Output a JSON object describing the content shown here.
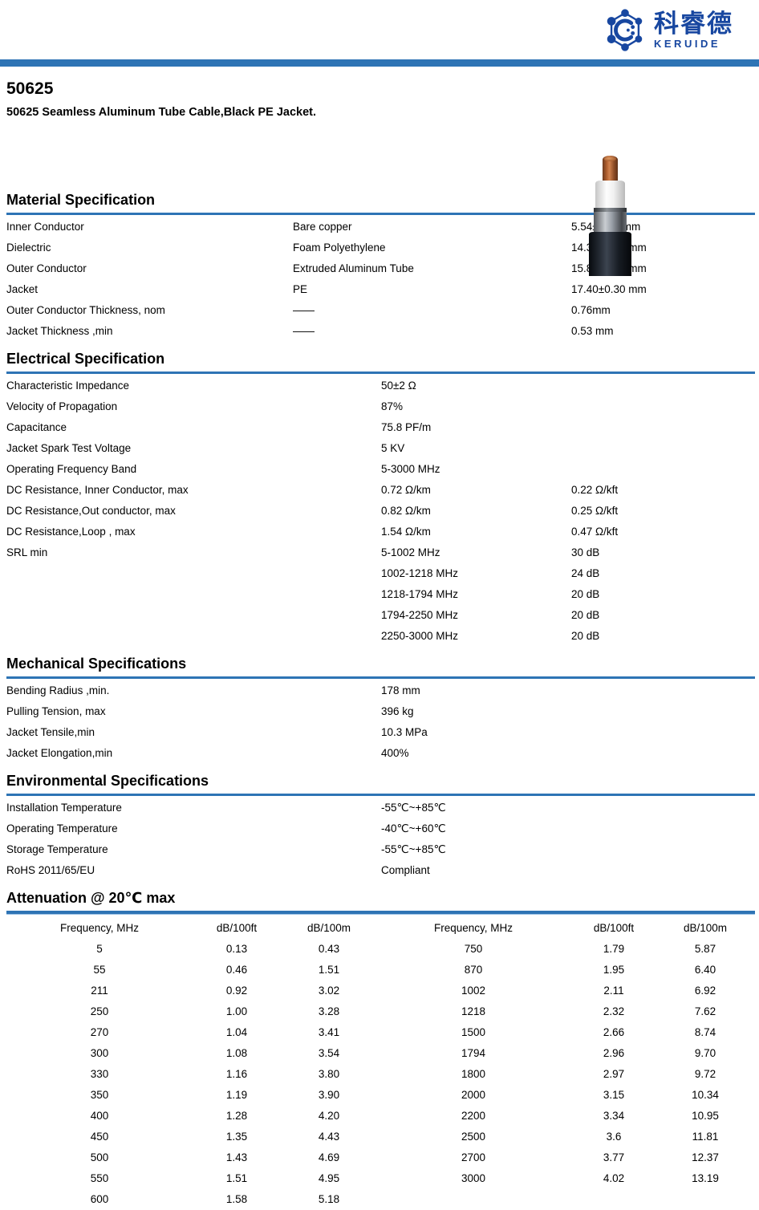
{
  "colors": {
    "accent_blue": "#2e74b5",
    "logo_blue": "#1847a0",
    "text": "#000000"
  },
  "header": {
    "logo_cn": "科睿德",
    "logo_en": "KERUIDE"
  },
  "product": {
    "model": "50625",
    "subtitle": "50625 Seamless Aluminum Tube Cable,Black PE Jacket."
  },
  "sections": {
    "material": {
      "heading": "Material Specification",
      "rows": [
        [
          "Inner Conductor",
          "Bare copper",
          "5.54±0.05 mm"
        ],
        [
          "Dielectric",
          "Foam Polyethylene",
          "14.30±0.10 mm"
        ],
        [
          "Outer Conductor",
          "Extruded Aluminum Tube",
          "15.88±0.10 mm"
        ],
        [
          "Jacket",
          "PE",
          "17.40±0.30 mm"
        ],
        [
          "Outer Conductor Thickness, nom",
          "——",
          "0.76mm"
        ],
        [
          "Jacket Thickness ,min",
          "——",
          "0.53 mm"
        ]
      ]
    },
    "electrical": {
      "heading": "Electrical Specification",
      "rows": [
        [
          "Characteristic Impedance",
          "50±2 Ω",
          ""
        ],
        [
          "Velocity of Propagation",
          "87%",
          ""
        ],
        [
          "Capacitance",
          "75.8 PF/m",
          ""
        ],
        [
          "Jacket Spark Test Voltage",
          "5 KV",
          ""
        ],
        [
          "Operating Frequency Band",
          "5-3000 MHz",
          ""
        ],
        [
          "DC Resistance, Inner Conductor, max",
          "0.72 Ω/km",
          "0.22 Ω/kft"
        ],
        [
          "DC Resistance,Out conductor, max",
          "0.82 Ω/km",
          "0.25 Ω/kft"
        ],
        [
          "DC Resistance,Loop , max",
          "1.54 Ω/km",
          "0.47 Ω/kft"
        ],
        [
          "SRL min",
          "5-1002 MHz",
          "30 dB"
        ],
        [
          "",
          "1002-1218 MHz",
          "24 dB"
        ],
        [
          "",
          "1218-1794 MHz",
          "20 dB"
        ],
        [
          "",
          "1794-2250 MHz",
          "20 dB"
        ],
        [
          "",
          "2250-3000 MHz",
          "20 dB"
        ]
      ]
    },
    "mechanical": {
      "heading": "Mechanical Specifications",
      "rows": [
        [
          "Bending Radius ,min.",
          "178 mm"
        ],
        [
          "Pulling Tension, max",
          "396 kg"
        ],
        [
          "Jacket Tensile,min",
          "10.3 MPa"
        ],
        [
          "Jacket Elongation,min",
          "400%"
        ]
      ]
    },
    "environmental": {
      "heading": "Environmental Specifications",
      "rows": [
        [
          "Installation Temperature",
          "-55℃~+85℃"
        ],
        [
          "Operating Temperature",
          "-40℃~+60℃"
        ],
        [
          "Storage Temperature",
          "-55℃~+85℃"
        ],
        [
          "RoHS 2011/65/EU",
          "Compliant"
        ]
      ]
    },
    "attenuation": {
      "heading": "Attenuation @ 20℃ max",
      "columns": [
        "Frequency, MHz",
        "dB/100ft",
        "dB/100m",
        "Frequency, MHz",
        "dB/100ft",
        "dB/100m"
      ],
      "rows": [
        [
          "5",
          "0.13",
          "0.43",
          "750",
          "1.79",
          "5.87"
        ],
        [
          "55",
          "0.46",
          "1.51",
          "870",
          "1.95",
          "6.40"
        ],
        [
          "211",
          "0.92",
          "3.02",
          "1002",
          "2.11",
          "6.92"
        ],
        [
          "250",
          "1.00",
          "3.28",
          "1218",
          "2.32",
          "7.62"
        ],
        [
          "270",
          "1.04",
          "3.41",
          "1500",
          "2.66",
          "8.74"
        ],
        [
          "300",
          "1.08",
          "3.54",
          "1794",
          "2.96",
          "9.70"
        ],
        [
          "330",
          "1.16",
          "3.80",
          "1800",
          "2.97",
          "9.72"
        ],
        [
          "350",
          "1.19",
          "3.90",
          "2000",
          "3.15",
          "10.34"
        ],
        [
          "400",
          "1.28",
          "4.20",
          "2200",
          "3.34",
          "10.95"
        ],
        [
          "450",
          "1.35",
          "4.43",
          "2500",
          "3.6",
          "11.81"
        ],
        [
          "500",
          "1.43",
          "4.69",
          "2700",
          "3.77",
          "12.37"
        ],
        [
          "550",
          "1.51",
          "4.95",
          "3000",
          "4.02",
          "13.19"
        ],
        [
          "600",
          "1.58",
          "5.18",
          "",
          "",
          ""
        ]
      ]
    }
  }
}
